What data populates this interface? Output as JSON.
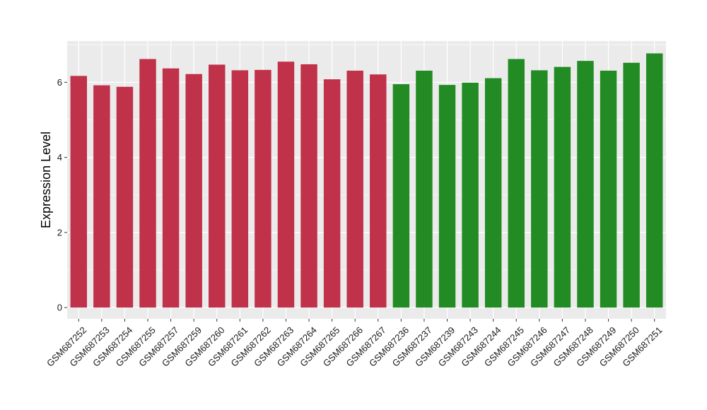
{
  "chart_data": {
    "type": "bar",
    "title": "",
    "xlabel": "",
    "ylabel": "Expression Level",
    "ylim": [
      -0.3,
      7.1
    ],
    "yticks": [
      0,
      2,
      4,
      6
    ],
    "ytick_labels": [
      "0",
      "2",
      "4",
      "6"
    ],
    "grid": true,
    "legend": "none",
    "colors": {
      "panel_background": "#ebebeb",
      "grid": "#ffffff",
      "group_1": "#c0314a",
      "group_2": "#238b23"
    },
    "categories": [
      "GSM687252",
      "GSM687253",
      "GSM687254",
      "GSM687255",
      "GSM687257",
      "GSM687259",
      "GSM687260",
      "GSM687261",
      "GSM687262",
      "GSM687263",
      "GSM687264",
      "GSM687265",
      "GSM687266",
      "GSM687267",
      "GSM687236",
      "GSM687237",
      "GSM687239",
      "GSM687243",
      "GSM687244",
      "GSM687245",
      "GSM687246",
      "GSM687247",
      "GSM687248",
      "GSM687249",
      "GSM687250",
      "GSM687251"
    ],
    "values": [
      6.17,
      5.92,
      5.88,
      6.62,
      6.37,
      6.22,
      6.47,
      6.32,
      6.33,
      6.55,
      6.48,
      6.08,
      6.31,
      6.21,
      5.95,
      6.31,
      5.93,
      5.99,
      6.11,
      6.62,
      6.32,
      6.41,
      6.57,
      6.31,
      6.52,
      6.77
    ],
    "bar_color_group": [
      1,
      1,
      1,
      1,
      1,
      1,
      1,
      1,
      1,
      1,
      1,
      1,
      1,
      1,
      2,
      2,
      2,
      2,
      2,
      2,
      2,
      2,
      2,
      2,
      2,
      2
    ]
  }
}
